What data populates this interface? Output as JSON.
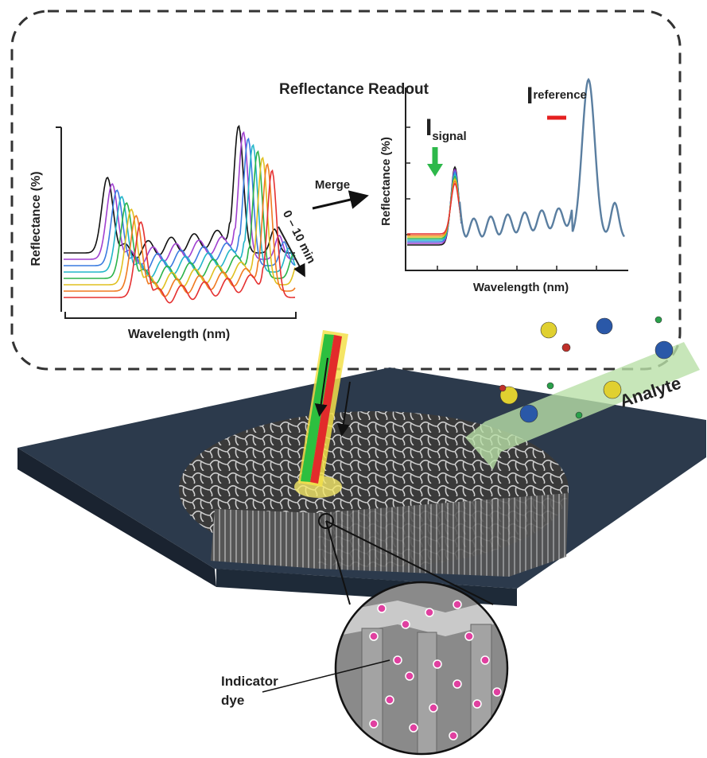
{
  "readout": {
    "title": "Reflectance Readout",
    "left_plot": {
      "y_label": "Reflectance (%)",
      "x_label": "Wavelength (nm)",
      "time_label": "0 – 10 min"
    },
    "merge_label": "Merge",
    "right_plot": {
      "y_label": "Reflectance (%)",
      "x_label": "Wavelength (nm)",
      "signal": {
        "symbol": "I",
        "subscript": "signal"
      },
      "reference": {
        "symbol": "I",
        "subscript": "reference"
      }
    }
  },
  "analyte_label": "Analyte",
  "indicator_label": [
    "Indicator",
    "dye"
  ]
}
